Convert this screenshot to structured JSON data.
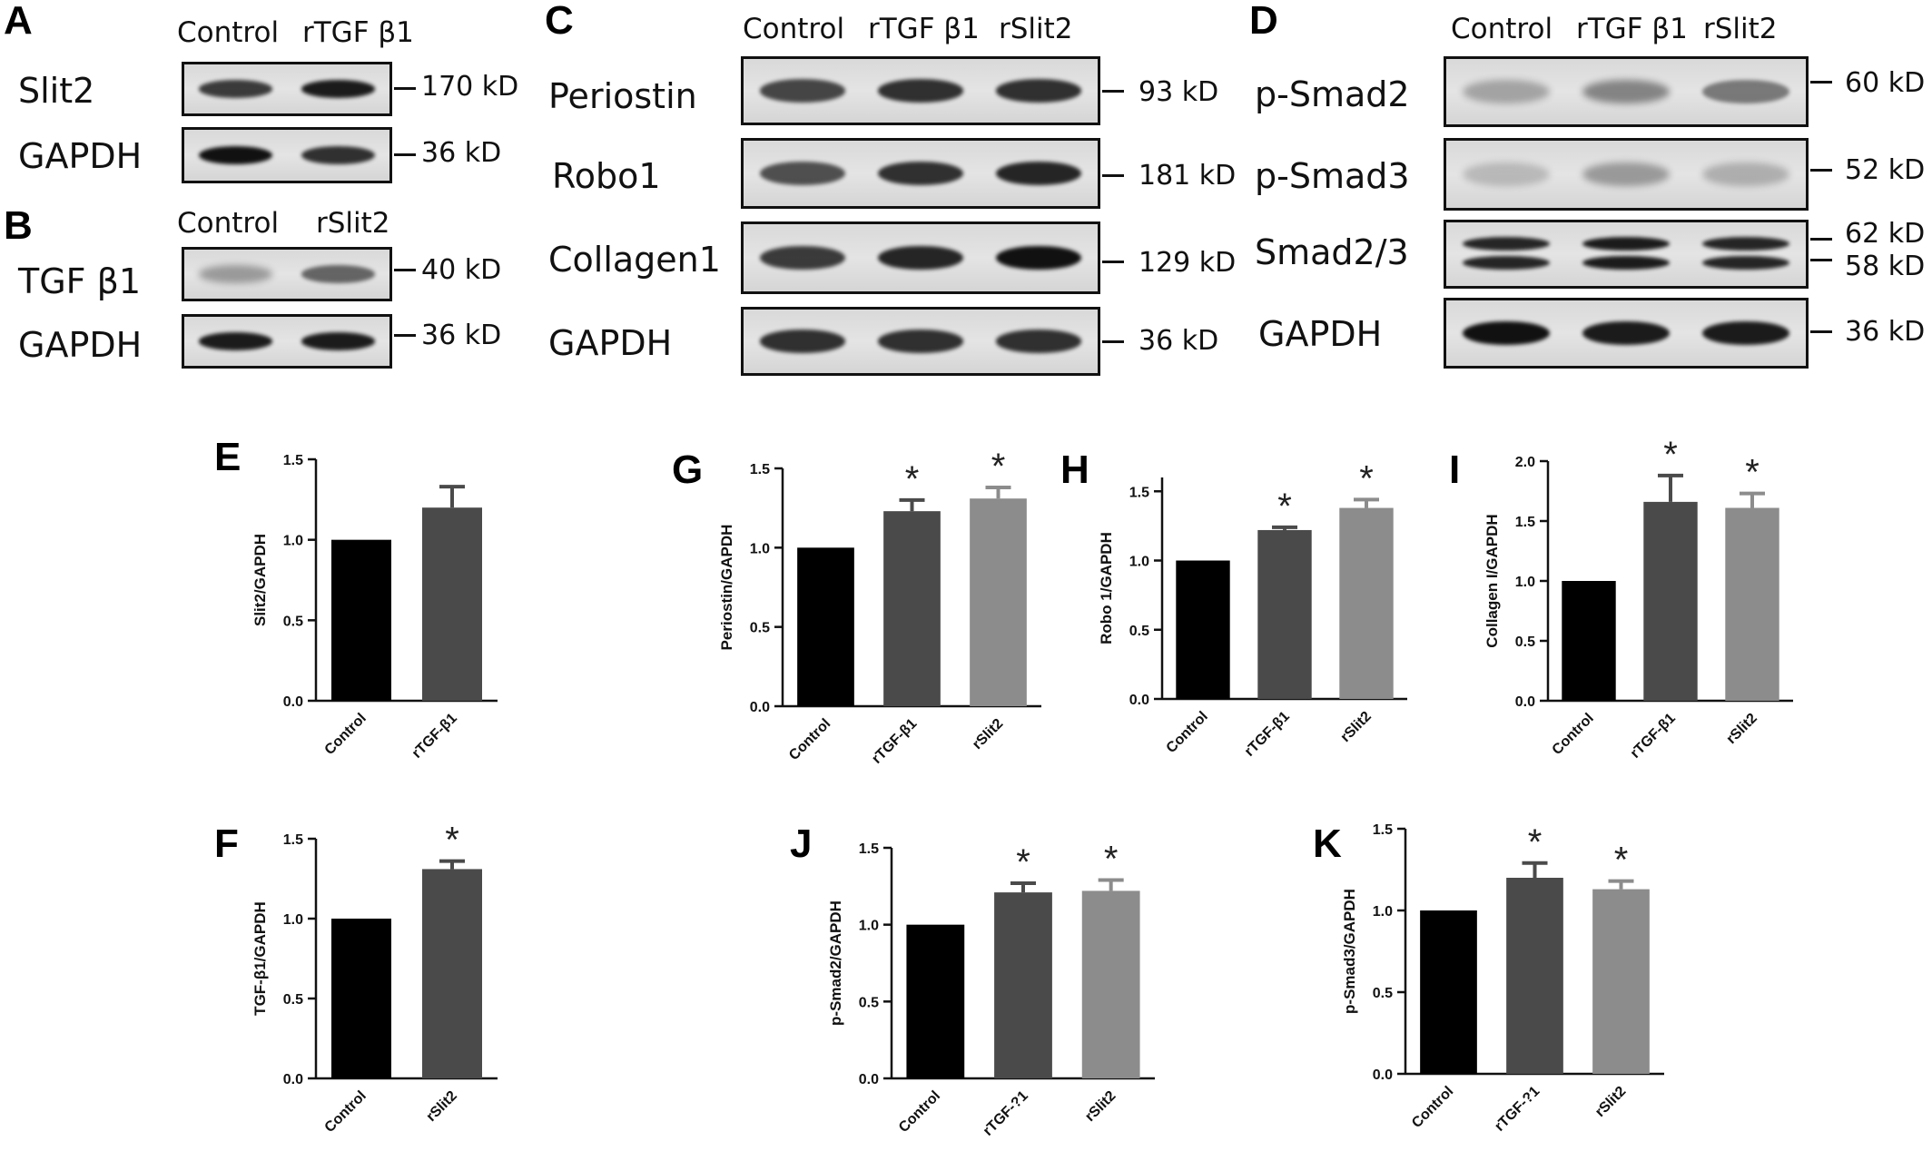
{
  "panels": {
    "A": {
      "letter": "A",
      "columns": [
        "Control",
        "rTGF β1"
      ],
      "rows": [
        {
          "name": "Slit2",
          "kd": "170 kD",
          "bands": [
            0.8,
            0.95
          ]
        },
        {
          "name": "GAPDH",
          "kd": "36 kD",
          "bands": [
            1.0,
            0.85
          ]
        }
      ]
    },
    "B": {
      "letter": "B",
      "columns": [
        "Control",
        "rSlit2"
      ],
      "rows": [
        {
          "name": "TGF β1",
          "kd": "40 kD",
          "bands": [
            0.35,
            0.6
          ]
        },
        {
          "name": "GAPDH",
          "kd": "36 kD",
          "bands": [
            0.95,
            0.95
          ]
        }
      ]
    },
    "C": {
      "letter": "C",
      "columns": [
        "Control",
        "rTGF β1",
        "rSlit2"
      ],
      "rows": [
        {
          "name": "Periostin",
          "kd": "93 kD",
          "bands": [
            0.75,
            0.85,
            0.85
          ]
        },
        {
          "name": "Robo1",
          "kd": "181 kD",
          "bands": [
            0.7,
            0.85,
            0.9
          ]
        },
        {
          "name": "Collagen1",
          "kd": "129 kD",
          "bands": [
            0.8,
            0.9,
            1.0
          ]
        },
        {
          "name": "GAPDH",
          "kd": "36 kD",
          "bands": [
            0.85,
            0.85,
            0.85
          ]
        }
      ]
    },
    "D": {
      "letter": "D",
      "columns": [
        "Control",
        "rTGF β1",
        "rSlit2"
      ],
      "rows": [
        {
          "name": "p-Smad2",
          "kd": "60 kD",
          "bands": [
            0.3,
            0.45,
            0.5
          ]
        },
        {
          "name": "p-Smad3",
          "kd": "52 kD",
          "bands": [
            0.2,
            0.35,
            0.25
          ]
        },
        {
          "name": "Smad2/3",
          "kd": "62 kD",
          "kd2": "58 kD",
          "bands": [
            0.9,
            0.95,
            0.9
          ]
        },
        {
          "name": "GAPDH",
          "kd": "36 kD",
          "bands": [
            1.0,
            0.95,
            0.95
          ]
        }
      ]
    }
  },
  "colors": {
    "control_bar": "#000000",
    "rtgf_bar": "#4a4a4a",
    "rslit2_bar": "#8c8c8c",
    "blot_bg": "#e4e4e4",
    "band": "#111111"
  },
  "chart_data": [
    {
      "panel": "E",
      "type": "bar",
      "ylabel": "Slit2/GAPDH",
      "categories": [
        "Control",
        "rTGF-β1"
      ],
      "values": [
        1.0,
        1.2
      ],
      "errors": [
        0,
        0.13
      ],
      "significant": [
        false,
        false
      ],
      "ylim": [
        0,
        1.5
      ],
      "yticks": [
        "0.0",
        "0.5",
        "1.0",
        "1.5"
      ]
    },
    {
      "panel": "F",
      "type": "bar",
      "ylabel": "TGF-β1/GAPDH",
      "categories": [
        "Control",
        "rSlit2"
      ],
      "values": [
        1.0,
        1.31
      ],
      "errors": [
        0,
        0.05
      ],
      "significant": [
        false,
        true
      ],
      "ylim": [
        0,
        1.5
      ],
      "yticks": [
        "0.0",
        "0.5",
        "1.0",
        "1.5"
      ]
    },
    {
      "panel": "G",
      "type": "bar",
      "ylabel": "Periostin/GAPDH",
      "categories": [
        "Control",
        "rTGF-β1",
        "rSlit2"
      ],
      "values": [
        1.0,
        1.23,
        1.31
      ],
      "errors": [
        0,
        0.07,
        0.07
      ],
      "significant": [
        false,
        true,
        true
      ],
      "ylim": [
        0,
        1.5
      ],
      "yticks": [
        "0.0",
        "0.5",
        "1.0",
        "1.5"
      ]
    },
    {
      "panel": "H",
      "type": "bar",
      "ylabel": "Robo 1/GAPDH",
      "categories": [
        "Control",
        "rTGF-β1",
        "rSlit2"
      ],
      "values": [
        1.0,
        1.22,
        1.38
      ],
      "errors": [
        0,
        0.02,
        0.06
      ],
      "significant": [
        false,
        true,
        true
      ],
      "ylim": [
        0,
        1.6
      ],
      "yticks": [
        "0.0",
        "0.5",
        "1.0",
        "1.5"
      ]
    },
    {
      "panel": "I",
      "type": "bar",
      "ylabel": "Collagen I/GAPDH",
      "categories": [
        "Control",
        "rTGF-β1",
        "rSlit2"
      ],
      "values": [
        1.0,
        1.66,
        1.61
      ],
      "errors": [
        0,
        0.22,
        0.12
      ],
      "significant": [
        false,
        true,
        true
      ],
      "ylim": [
        0,
        2.0
      ],
      "yticks": [
        "0.0",
        "0.5",
        "1.0",
        "1.5",
        "2.0"
      ]
    },
    {
      "panel": "J",
      "type": "bar",
      "ylabel": "p-Smad2/GAPDH",
      "categories": [
        "Control",
        "rTGF-?1",
        "rSlit2"
      ],
      "values": [
        1.0,
        1.21,
        1.22
      ],
      "errors": [
        0,
        0.06,
        0.07
      ],
      "significant": [
        false,
        true,
        true
      ],
      "ylim": [
        0,
        1.5
      ],
      "yticks": [
        "0.0",
        "0.5",
        "1.0",
        "1.5"
      ]
    },
    {
      "panel": "K",
      "type": "bar",
      "ylabel": "p-Smad3/GAPDH",
      "categories": [
        "Control",
        "rTGF-?1",
        "rSlit2"
      ],
      "values": [
        1.0,
        1.2,
        1.13
      ],
      "errors": [
        0,
        0.09,
        0.05
      ],
      "significant": [
        false,
        true,
        true
      ],
      "ylim": [
        0,
        1.5
      ],
      "yticks": [
        "0.0",
        "0.5",
        "1.0",
        "1.5"
      ]
    }
  ]
}
